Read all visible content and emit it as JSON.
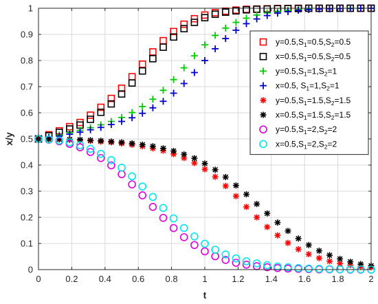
{
  "chart_data": {
    "type": "scatter",
    "xlabel": "t",
    "ylabel": "x/y",
    "xlim": [
      0,
      2
    ],
    "ylim": [
      0,
      1
    ],
    "xticks": [
      "0",
      "0.2",
      "0.4",
      "0.6",
      "0.8",
      "1",
      "1.2",
      "1.4",
      "1.6",
      "1.8",
      "2"
    ],
    "yticks": [
      "0",
      "0.1",
      "0.2",
      "0.3",
      "0.4",
      "0.5",
      "0.6",
      "0.7",
      "0.8",
      "0.9",
      "1"
    ],
    "grid": true,
    "legend_position": "top-right",
    "x": [
      0,
      0.0625,
      0.125,
      0.1875,
      0.25,
      0.3125,
      0.375,
      0.4375,
      0.5,
      0.5625,
      0.625,
      0.6875,
      0.75,
      0.8125,
      0.875,
      0.9375,
      1,
      1.0625,
      1.125,
      1.1875,
      1.25,
      1.3125,
      1.375,
      1.4375,
      1.5,
      1.5625,
      1.625,
      1.6875,
      1.75,
      1.8125,
      1.875,
      1.9375,
      2
    ],
    "series": [
      {
        "name": "y=0.5,S_1=0.5,S_2=0.5",
        "marker": "square",
        "color": "#ff0000",
        "values": [
          0.5,
          0.516,
          0.531,
          0.547,
          0.563,
          0.591,
          0.621,
          0.655,
          0.694,
          0.738,
          0.786,
          0.833,
          0.876,
          0.911,
          0.939,
          0.96,
          0.974,
          0.983,
          0.989,
          0.993,
          0.996,
          0.997,
          0.998,
          0.999,
          0.999,
          1,
          1,
          1,
          1,
          1,
          1,
          1,
          1
        ]
      },
      {
        "name": "x=0.5,S_1=0.5,S_2=0.5",
        "marker": "square",
        "color": "#000000",
        "values": [
          0.5,
          0.512,
          0.525,
          0.538,
          0.553,
          0.575,
          0.602,
          0.634,
          0.672,
          0.714,
          0.76,
          0.807,
          0.851,
          0.89,
          0.922,
          0.946,
          0.964,
          0.977,
          0.985,
          0.99,
          0.994,
          0.996,
          0.997,
          0.998,
          0.999,
          0.999,
          1,
          1,
          1,
          1,
          1,
          1,
          1
        ]
      },
      {
        "name": "y=0.5,S_1=1,S_2=1",
        "marker": "plus",
        "color": "#00cc00",
        "values": [
          0.5,
          0.507,
          0.515,
          0.524,
          0.533,
          0.543,
          0.554,
          0.567,
          0.582,
          0.601,
          0.624,
          0.652,
          0.686,
          0.727,
          0.772,
          0.818,
          0.86,
          0.896,
          0.924,
          0.946,
          0.962,
          0.974,
          0.982,
          0.988,
          0.992,
          0.995,
          0.997,
          0.998,
          0.999,
          0.999,
          1,
          1,
          1
        ]
      },
      {
        "name": "x=0.5, S_1=1,S_2=1",
        "marker": "plus",
        "color": "#0000cc",
        "values": [
          0.5,
          0.505,
          0.511,
          0.518,
          0.526,
          0.535,
          0.544,
          0.555,
          0.567,
          0.581,
          0.598,
          0.619,
          0.644,
          0.675,
          0.712,
          0.754,
          0.8,
          0.845,
          0.884,
          0.916,
          0.941,
          0.959,
          0.972,
          0.981,
          0.987,
          0.992,
          0.995,
          0.997,
          0.998,
          0.999,
          0.999,
          1,
          1
        ]
      },
      {
        "name": "y=0.5,S_1=1.5,S_2=1.5",
        "marker": "asterisk",
        "color": "#ff0000",
        "values": [
          0.5,
          0.499,
          0.498,
          0.497,
          0.495,
          0.493,
          0.49,
          0.487,
          0.483,
          0.478,
          0.472,
          0.464,
          0.455,
          0.442,
          0.427,
          0.408,
          0.384,
          0.355,
          0.32,
          0.281,
          0.24,
          0.2,
          0.163,
          0.131,
          0.102,
          0.078,
          0.059,
          0.044,
          0.032,
          0.023,
          0.017,
          0.012,
          0.009
        ]
      },
      {
        "name": "x=0.5,S_1=1.5,S_2=1.5",
        "marker": "asterisk",
        "color": "#000000",
        "values": [
          0.5,
          0.5,
          0.499,
          0.498,
          0.497,
          0.495,
          0.493,
          0.49,
          0.487,
          0.483,
          0.478,
          0.472,
          0.464,
          0.454,
          0.441,
          0.426,
          0.406,
          0.382,
          0.354,
          0.322,
          0.288,
          0.251,
          0.215,
          0.18,
          0.148,
          0.119,
          0.094,
          0.072,
          0.055,
          0.041,
          0.03,
          0.021,
          0.015
        ]
      },
      {
        "name": "y=0.5,S_1=2,S_2=2",
        "marker": "circle",
        "color": "#dd00dd",
        "values": [
          0.5,
          0.497,
          0.491,
          0.481,
          0.468,
          0.45,
          0.427,
          0.399,
          0.365,
          0.326,
          0.284,
          0.24,
          0.198,
          0.159,
          0.124,
          0.094,
          0.07,
          0.051,
          0.037,
          0.026,
          0.019,
          0.013,
          0.009,
          0.006,
          0.004,
          0.003,
          0.002,
          0.001,
          0.001,
          0.001,
          0,
          0,
          0
        ]
      },
      {
        "name": "x=0.5,S_1=2,S_2=2",
        "marker": "circle",
        "color": "#00e5ee",
        "values": [
          0.5,
          0.498,
          0.494,
          0.487,
          0.476,
          0.462,
          0.443,
          0.419,
          0.39,
          0.357,
          0.318,
          0.278,
          0.236,
          0.196,
          0.159,
          0.127,
          0.099,
          0.076,
          0.058,
          0.043,
          0.032,
          0.024,
          0.017,
          0.012,
          0.009,
          0.006,
          0.004,
          0.003,
          0.002,
          0.001,
          0.001,
          0.001,
          0
        ]
      }
    ]
  }
}
